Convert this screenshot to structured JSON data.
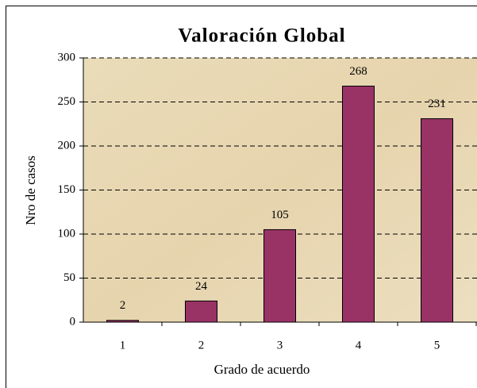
{
  "chart_data": {
    "type": "bar",
    "title": "Valoración Global",
    "x_label": "Grado de acuerdo",
    "y_label": "Nro de casos",
    "categories": [
      "1",
      "2",
      "3",
      "4",
      "5"
    ],
    "values": [
      2,
      24,
      105,
      268,
      231
    ],
    "color": "#993366",
    "ylim": [
      0,
      300
    ],
    "yticks": [
      0,
      50,
      100,
      150,
      200,
      250,
      300
    ],
    "grid": true
  }
}
